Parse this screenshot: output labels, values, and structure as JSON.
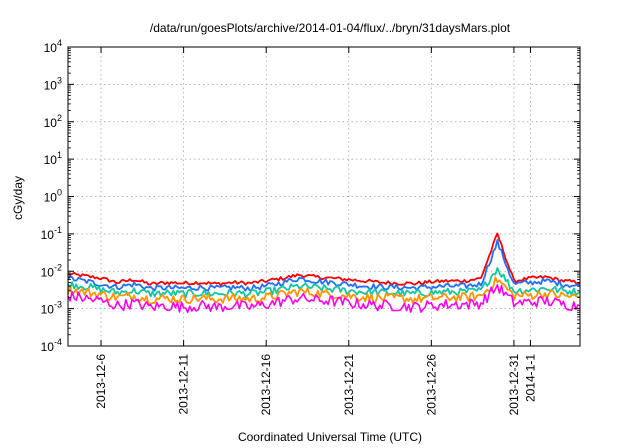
{
  "chart_data": {
    "type": "line",
    "title": "/data/run/goesPlots/archive/2014-01-04/flux/../bryn/31daysMars.plot",
    "xlabel": "Coordinated Universal Time (UTC)",
    "ylabel": "cGy/day",
    "yscale": "log",
    "ylim": [
      0.0001,
      10000
    ],
    "xlim": [
      "2013-12-04",
      "2014-01-04"
    ],
    "grid": true,
    "legend": "none",
    "y_ticks": [
      {
        "base": "10",
        "exp": "4"
      },
      {
        "base": "10",
        "exp": "3"
      },
      {
        "base": "10",
        "exp": "2"
      },
      {
        "base": "10",
        "exp": "1"
      },
      {
        "base": "10",
        "exp": "0"
      },
      {
        "base": "10",
        "exp": "-1"
      },
      {
        "base": "10",
        "exp": "-2"
      },
      {
        "base": "10",
        "exp": "-3"
      },
      {
        "base": "10",
        "exp": "-4"
      }
    ],
    "x_ticks": [
      {
        "date": "2013-12-06",
        "label": "2013-12-6"
      },
      {
        "date": "2013-12-11",
        "label": "2013-12-11"
      },
      {
        "date": "2013-12-16",
        "label": "2013-12-16"
      },
      {
        "date": "2013-12-21",
        "label": "2013-12-21"
      },
      {
        "date": "2013-12-26",
        "label": "2013-12-26"
      },
      {
        "date": "2013-12-31",
        "label": "2013-12-31"
      },
      {
        "date": "2014-01-01",
        "label": "2014-1-1"
      }
    ],
    "x": [
      "2013-12-04",
      "2013-12-05",
      "2013-12-06",
      "2013-12-07",
      "2013-12-08",
      "2013-12-09",
      "2013-12-10",
      "2013-12-11",
      "2013-12-12",
      "2013-12-13",
      "2013-12-14",
      "2013-12-15",
      "2013-12-16",
      "2013-12-17",
      "2013-12-18",
      "2013-12-19",
      "2013-12-20",
      "2013-12-21",
      "2013-12-22",
      "2013-12-23",
      "2013-12-24",
      "2013-12-25",
      "2013-12-26",
      "2013-12-27",
      "2013-12-28",
      "2013-12-29",
      "2013-12-30",
      "2013-12-31",
      "2014-01-01",
      "2014-01-02",
      "2014-01-03",
      "2014-01-04"
    ],
    "series": [
      {
        "color": "#ff0000",
        "values": [
          0.0085,
          0.0075,
          0.0065,
          0.005,
          0.006,
          0.0045,
          0.005,
          0.0048,
          0.005,
          0.0046,
          0.005,
          0.0048,
          0.0055,
          0.0065,
          0.008,
          0.007,
          0.0065,
          0.006,
          0.0055,
          0.005,
          0.0048,
          0.0047,
          0.0052,
          0.0055,
          0.0055,
          0.0065,
          0.1,
          0.0055,
          0.0065,
          0.007,
          0.0055,
          0.005
        ]
      },
      {
        "color": "#1f6fff",
        "values": [
          0.0065,
          0.0055,
          0.0045,
          0.0038,
          0.0045,
          0.0035,
          0.0036,
          0.0035,
          0.0037,
          0.0035,
          0.0037,
          0.0035,
          0.004,
          0.005,
          0.0065,
          0.0055,
          0.005,
          0.0045,
          0.004,
          0.0038,
          0.0037,
          0.0036,
          0.0038,
          0.004,
          0.004,
          0.0045,
          0.06,
          0.0045,
          0.005,
          0.0055,
          0.0045,
          0.004
        ]
      },
      {
        "color": "#11c7a0",
        "values": [
          0.0045,
          0.004,
          0.0032,
          0.0027,
          0.003,
          0.0025,
          0.0026,
          0.0025,
          0.0026,
          0.0025,
          0.0026,
          0.0025,
          0.0028,
          0.0033,
          0.004,
          0.0036,
          0.0033,
          0.003,
          0.0028,
          0.0027,
          0.0026,
          0.0025,
          0.0027,
          0.0028,
          0.0028,
          0.003,
          0.012,
          0.003,
          0.0032,
          0.0035,
          0.003,
          0.0028
        ]
      },
      {
        "color": "#ff9400",
        "values": [
          0.0032,
          0.0028,
          0.0024,
          0.002,
          0.0022,
          0.0018,
          0.0019,
          0.0018,
          0.0019,
          0.0018,
          0.0019,
          0.0018,
          0.002,
          0.0024,
          0.0029,
          0.0026,
          0.0024,
          0.0022,
          0.002,
          0.0019,
          0.0019,
          0.0018,
          0.0019,
          0.002,
          0.002,
          0.0022,
          0.006,
          0.0022,
          0.0023,
          0.0025,
          0.0022,
          0.002
        ]
      },
      {
        "color": "#ff00ee",
        "values": [
          0.0022,
          0.0019,
          0.0016,
          0.0012,
          0.0014,
          0.0011,
          0.0012,
          0.0011,
          0.0012,
          0.0011,
          0.0012,
          0.0011,
          0.0013,
          0.0016,
          0.0019,
          0.0017,
          0.0016,
          0.0014,
          0.0013,
          0.0012,
          0.0012,
          0.0011,
          0.0012,
          0.0013,
          0.0013,
          0.0014,
          0.004,
          0.0014,
          0.0015,
          0.0016,
          0.0013,
          0.0012
        ]
      }
    ]
  }
}
